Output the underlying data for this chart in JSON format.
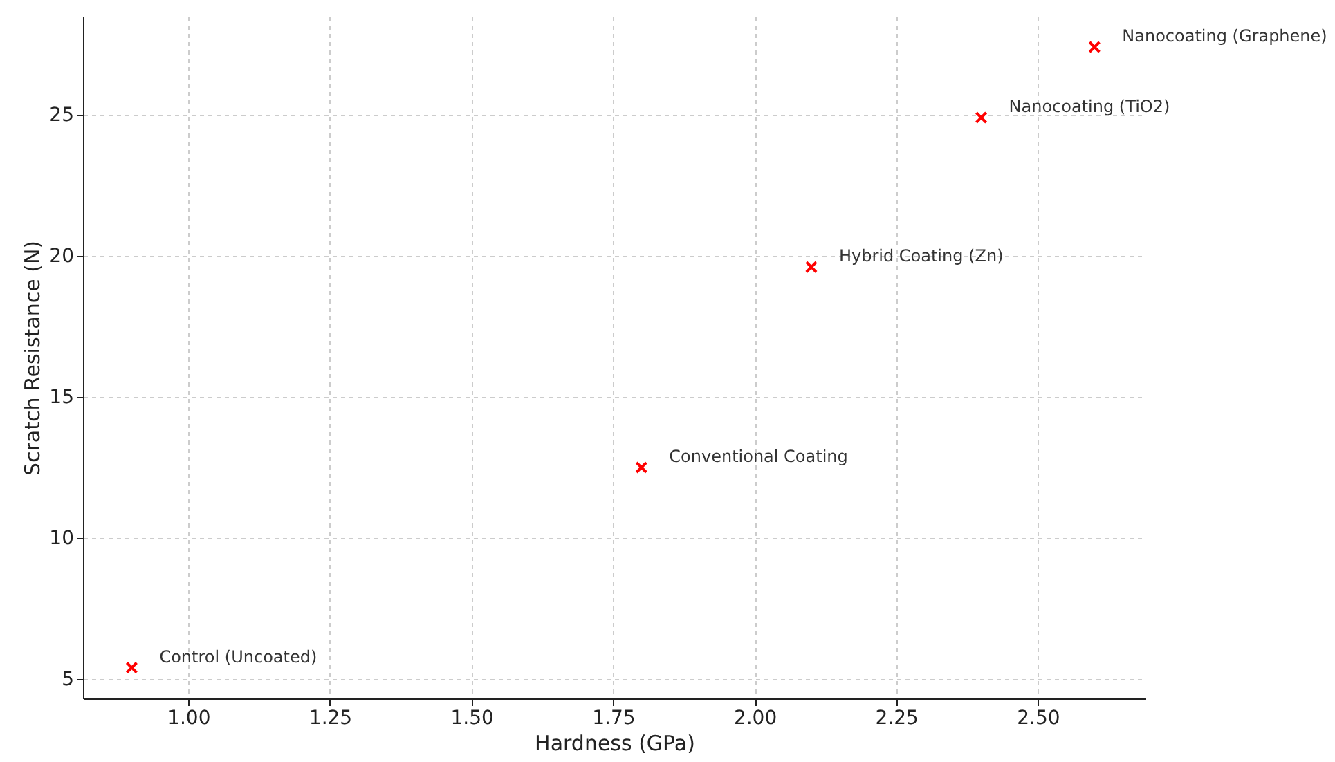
{
  "chart_data": {
    "type": "scatter",
    "xlabel": "Hardness (GPa)",
    "ylabel": "Scratch Resistance (N)",
    "x": [
      0.9,
      1.8,
      2.1,
      2.4,
      2.6
    ],
    "series": [
      {
        "color": "#ff0000",
        "values": [
          5.4,
          12.5,
          19.6,
          24.9,
          27.4
        ]
      }
    ],
    "marker": "cross",
    "grid": true,
    "xlim": [
      0.814,
      2.69
    ],
    "ylim": [
      4.31,
      28.48
    ],
    "xticks": [
      {
        "value": 1,
        "label": "1.00"
      },
      {
        "value": 1.25,
        "label": "1.25"
      },
      {
        "value": 1.5,
        "label": "1.50"
      },
      {
        "value": 1.75,
        "label": "1.75"
      },
      {
        "value": 2,
        "label": "2.00"
      },
      {
        "value": 2.25,
        "label": "2.25"
      },
      {
        "value": 2.5,
        "label": "2.50"
      }
    ],
    "yticks": [
      5,
      10,
      15,
      20,
      25
    ],
    "annotations": [
      {
        "text": "Control (Uncoated)",
        "x": 0.9,
        "y": 5.4
      },
      {
        "text": "Conventional Coating",
        "x": 1.8,
        "y": 12.5
      },
      {
        "text": "Hybrid Coating (Zn)",
        "x": 2.1,
        "y": 19.6
      },
      {
        "text": "Nanocoating (TiO2)",
        "x": 2.4,
        "y": 24.9
      },
      {
        "text": "Nanocoating (Graphene)",
        "x": 2.6,
        "y": 27.4
      }
    ]
  }
}
